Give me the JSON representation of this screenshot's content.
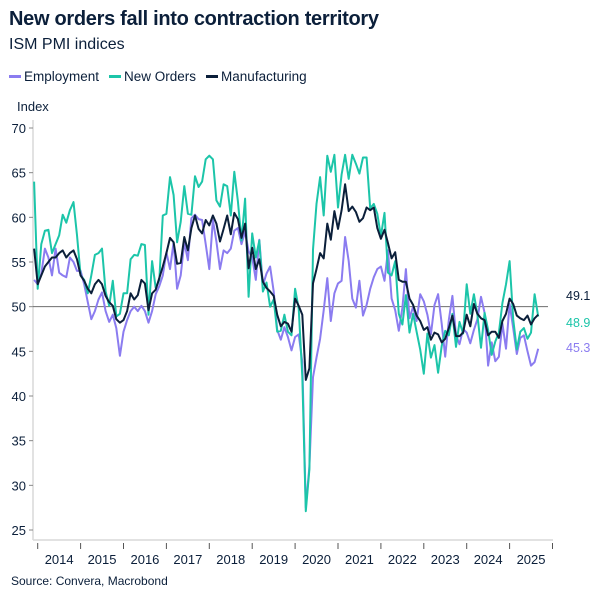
{
  "title": "New orders fall into contraction territory",
  "subtitle": "ISM PMI indices",
  "source": "Source: Convera, Macrobond",
  "chart_data": {
    "type": "line",
    "ylabel": "Index",
    "ylim": [
      25,
      70
    ],
    "yticks": [
      25,
      30,
      35,
      40,
      45,
      50,
      55,
      60,
      65,
      70
    ],
    "xticks": [
      "2014",
      "2015",
      "2016",
      "2017",
      "2018",
      "2019",
      "2020",
      "2021",
      "2022",
      "2023",
      "2024",
      "2025"
    ],
    "x_start": "2013-12",
    "x_end": "2025-09",
    "frequency": "monthly",
    "reference_line": 50,
    "legend_position": "top-left",
    "series": [
      {
        "name": "Employment",
        "color": "#8b7cf0",
        "last_label": "45.3",
        "values": [
          53,
          52.5,
          53.7,
          56.5,
          55.5,
          53.5,
          56.5,
          53.8,
          53.5,
          53.3,
          55.5,
          55,
          54,
          54,
          52.5,
          50.5,
          48.6,
          49.5,
          50.8,
          51.6,
          49.5,
          48.3,
          49.1,
          47.6,
          44.5,
          47.2,
          48.5,
          49.5,
          50,
          49.5,
          50.1,
          49.5,
          48.2,
          49.5,
          51.4,
          52.3,
          53.5,
          56.1,
          54.2,
          57.2,
          52,
          53.5,
          57.2,
          55.2,
          59.9,
          60.3,
          59.8,
          59.7,
          57,
          54.2,
          59.7,
          57.3,
          54.2,
          56.3,
          56,
          56.5,
          58.5,
          58.8,
          57,
          58.4,
          56.2,
          55.5,
          53,
          57.5,
          52.4,
          53.7,
          54.5,
          51.7,
          47.4,
          46.3,
          47.7,
          46.6,
          45.1,
          46.6,
          46.9,
          43.8,
          27.5,
          32.1,
          42.1,
          44.3,
          46.4,
          49.6,
          53.2,
          48.4,
          51.5,
          52.6,
          52.9,
          57.8,
          55.1,
          50.9,
          49.9,
          52.9,
          49,
          50.2,
          52,
          53.3,
          54.2,
          54.5,
          52.9,
          56.3,
          50.9,
          49.6,
          47.3,
          49.9,
          54.2,
          48.7,
          50,
          48.4,
          51.4,
          50.6,
          49.1,
          46.9,
          50.2,
          51.4,
          48.1,
          44.4,
          48.5,
          51.2,
          46.8,
          45.8,
          47.5,
          47.1,
          45.9,
          47.4,
          48.6,
          51.1,
          49.3,
          43.4,
          46,
          43.9,
          44.4,
          48.1,
          45.3,
          50.3,
          47.6,
          44.7,
          46.5,
          46.8,
          45,
          43.4,
          43.8,
          45.3
        ]
      },
      {
        "name": "New Orders",
        "color": "#1cc5a9",
        "last_label": "48.9",
        "values": [
          64,
          52,
          57,
          58.5,
          58.6,
          56,
          57,
          58,
          60.3,
          59.4,
          60.8,
          61.7,
          58,
          53.5,
          53,
          51.5,
          53.5,
          55.8,
          56,
          56.5,
          51.7,
          50.1,
          52.9,
          48.9,
          49.2,
          51.5,
          51.5,
          55.3,
          55.8,
          55.7,
          57,
          56.9,
          49.1,
          55.1,
          52.1,
          53,
          60.2,
          60.4,
          64.5,
          62.5,
          57.2,
          59.5,
          63.5,
          60.4,
          60.3,
          64.6,
          63.4,
          64,
          66.5,
          66.9,
          66.5,
          61.9,
          61.2,
          63.7,
          63.5,
          60.2,
          65.1,
          61.8,
          57.4,
          62.1,
          51.1,
          58.2,
          55.5,
          57.4,
          51.7,
          52.7,
          50,
          50.8,
          47.2,
          47.3,
          49.1,
          47.2,
          46.8,
          52,
          49.8,
          42.2,
          27.1,
          31.8,
          56.4,
          61.5,
          64.5,
          60.2,
          66.9,
          65.1,
          67,
          61.1,
          64.8,
          67,
          64.3,
          67,
          66,
          64.9,
          66.7,
          66.7,
          61,
          61.5,
          60.4,
          57.9,
          60.5,
          53.8,
          53.5,
          55.1,
          49.2,
          48,
          51.3,
          47.1,
          49.2,
          47.2,
          45.2,
          42.5,
          47,
          44.3,
          45.7,
          42.6,
          45.6,
          47.3,
          46.8,
          49.2,
          45.5,
          48.3,
          47,
          52.5,
          49.2,
          51.4,
          49.1,
          45.4,
          49.3,
          47.4,
          44.6,
          46.1,
          47.1,
          50.4,
          52.5,
          55.1,
          48.6,
          45.2,
          47.2,
          47.6,
          46.4,
          47.1,
          51.4,
          48.9
        ]
      },
      {
        "name": "Manufacturing",
        "color": "#0b1f3a",
        "last_label": "49.1",
        "values": [
          56.5,
          52.5,
          53.5,
          54.5,
          55,
          55.5,
          55.5,
          56,
          56.3,
          55.5,
          56,
          56.3,
          55.3,
          53.5,
          52.9,
          52,
          51.5,
          52.5,
          53,
          52.5,
          51.2,
          50.5,
          50.1,
          48.6,
          48.2,
          48.5,
          49.5,
          51.5,
          50.8,
          51.3,
          53,
          52.6,
          49.6,
          51.5,
          51.9,
          53.2,
          54.5,
          56,
          57.7,
          57.2,
          54.8,
          54.9,
          57.8,
          56.3,
          58.8,
          60.2,
          58.7,
          58.2,
          59.7,
          59.1,
          60.2,
          59.3,
          57.3,
          58.7,
          60.2,
          58.1,
          60.5,
          59.8,
          57.7,
          59.3,
          54.3,
          56.6,
          54.2,
          55.3,
          52.8,
          52.1,
          51.7,
          51.2,
          49.1,
          47.8,
          48.3,
          48.1,
          47.2,
          50.9,
          50.1,
          49.1,
          41.8,
          43.1,
          52.6,
          54.2,
          56,
          55.4,
          59.3,
          57.5,
          60.7,
          58.7,
          60.8,
          63.7,
          60.7,
          61.2,
          60.6,
          59.5,
          59.9,
          61.1,
          60.8,
          61.1,
          58.8,
          57.6,
          58.6,
          57.1,
          55.4,
          56.1,
          53,
          52.8,
          52.8,
          50.9,
          50.2,
          49,
          48.4,
          47.4,
          47.7,
          46.3,
          47.1,
          46.9,
          46,
          46.4,
          47.6,
          49,
          46.7,
          46.7,
          47.1,
          49.1,
          47.8,
          50.3,
          49.2,
          48.7,
          48.5,
          46.8,
          47.2,
          47.2,
          46.5,
          48.4,
          49.2,
          50.9,
          50.3,
          49,
          48.7,
          48.5,
          49,
          48,
          48.7,
          49.1
        ]
      }
    ]
  }
}
